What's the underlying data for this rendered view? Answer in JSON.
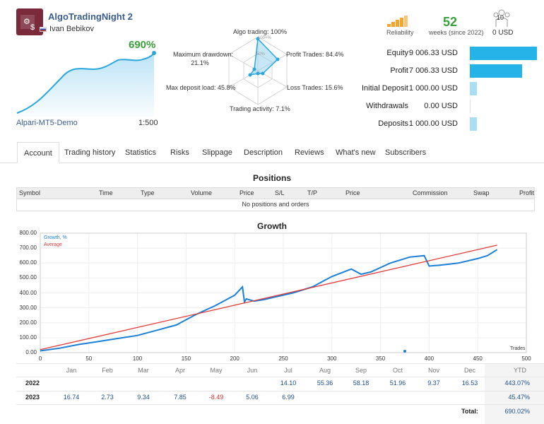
{
  "header": {
    "signal_name": "AlgoTradingNight 2",
    "author": "Ivan Bebikov",
    "gain": "690%",
    "broker": "Alpari-MT5-Demo",
    "leverage": "1:500"
  },
  "radar": {
    "algo": "Algo trading: 100%",
    "profit_trades": "Profit Trades: 84.4%",
    "loss_trades": "Loss Trades: 15.6%",
    "activity": "Trading activity: 7.1%",
    "deposit_load": "Max deposit load: 45.8%",
    "drawdown_label": "Maximum drawdown:",
    "drawdown_value": "21.1%",
    "ring_50": "50%",
    "ring_100": "100+%"
  },
  "stats": {
    "reliability_label": "Reliability",
    "weeks_value": "52",
    "weeks_label": "weeks (since 2022)",
    "subscribers_count": "10",
    "subscribers_usd": "0 USD",
    "finance": [
      {
        "label": "Equity",
        "value": "9 006.33 USD",
        "fraction": 1.0
      },
      {
        "label": "Profit",
        "value": "7 006.33 USD",
        "fraction": 0.78
      },
      {
        "label": "Initial Deposit",
        "value": "1 000.00 USD",
        "fraction": 0.11
      },
      {
        "label": "Withdrawals",
        "value": "0.00 USD",
        "fraction": 0
      },
      {
        "label": "Deposits",
        "value": "1 000.00 USD",
        "fraction": 0.11
      }
    ]
  },
  "tabs": [
    "Account",
    "Trading history",
    "Statistics",
    "Risks",
    "Slippage",
    "Description",
    "Reviews",
    "What's new",
    "Subscribers"
  ],
  "positions": {
    "title": "Positions",
    "columns": [
      "Symbol",
      "Time",
      "Type",
      "Volume",
      "Price",
      "S/L",
      "T/P",
      "Price",
      "Commission",
      "Swap",
      "Profit"
    ],
    "empty_text": "No positions and orders"
  },
  "growth": {
    "title": "Growth",
    "legend_growth": "Growth, %",
    "legend_average": "Average",
    "x_axis_label": "Trades",
    "y_ticks": [
      "800.00",
      "700.00",
      "600.00",
      "500.00",
      "400.00",
      "300.00",
      "200.00",
      "100.00",
      "0.00"
    ],
    "x_ticks": [
      "0",
      "50",
      "100",
      "150",
      "200",
      "250",
      "300",
      "350",
      "400",
      "450",
      "500"
    ]
  },
  "chart_data": {
    "type": "line",
    "xlabel": "Trades",
    "xlim": [
      0,
      500
    ],
    "ylim": [
      0,
      800
    ],
    "series": [
      {
        "name": "Growth, %",
        "color": "#1a7fd6",
        "x": [
          0,
          20,
          40,
          60,
          80,
          100,
          120,
          140,
          160,
          180,
          200,
          208,
          210,
          212,
          220,
          230,
          240,
          260,
          280,
          300,
          320,
          330,
          340,
          350,
          360,
          380,
          395,
          400,
          410,
          430,
          450,
          460,
          470
        ],
        "y": [
          12,
          30,
          55,
          75,
          95,
          115,
          150,
          185,
          255,
          315,
          385,
          440,
          340,
          360,
          345,
          355,
          370,
          400,
          440,
          510,
          560,
          525,
          540,
          570,
          600,
          640,
          650,
          580,
          585,
          600,
          630,
          650,
          690
        ]
      },
      {
        "name": "Average",
        "color": "#e03a3a",
        "x": [
          0,
          470
        ],
        "y": [
          20,
          720
        ]
      }
    ]
  },
  "monthly": {
    "months": [
      "Jan",
      "Feb",
      "Mar",
      "Apr",
      "May",
      "Jun",
      "Jul",
      "Aug",
      "Sep",
      "Oct",
      "Nov",
      "Dec"
    ],
    "ytd_label": "YTD",
    "rows": [
      {
        "year": "2022",
        "values": [
          "",
          "",
          "",
          "",
          "",
          "",
          "14.10",
          "55.36",
          "58.18",
          "51.96",
          "9.37",
          "16.53"
        ],
        "ytd": "443.07%"
      },
      {
        "year": "2023",
        "values": [
          "16.74",
          "2.73",
          "9.34",
          "7.85",
          "-8.49",
          "5.06",
          "6.99",
          "",
          "",
          "",
          "",
          ""
        ],
        "ytd": "45.47%"
      }
    ],
    "total_label": "Total:",
    "total_value": "690.02%"
  }
}
